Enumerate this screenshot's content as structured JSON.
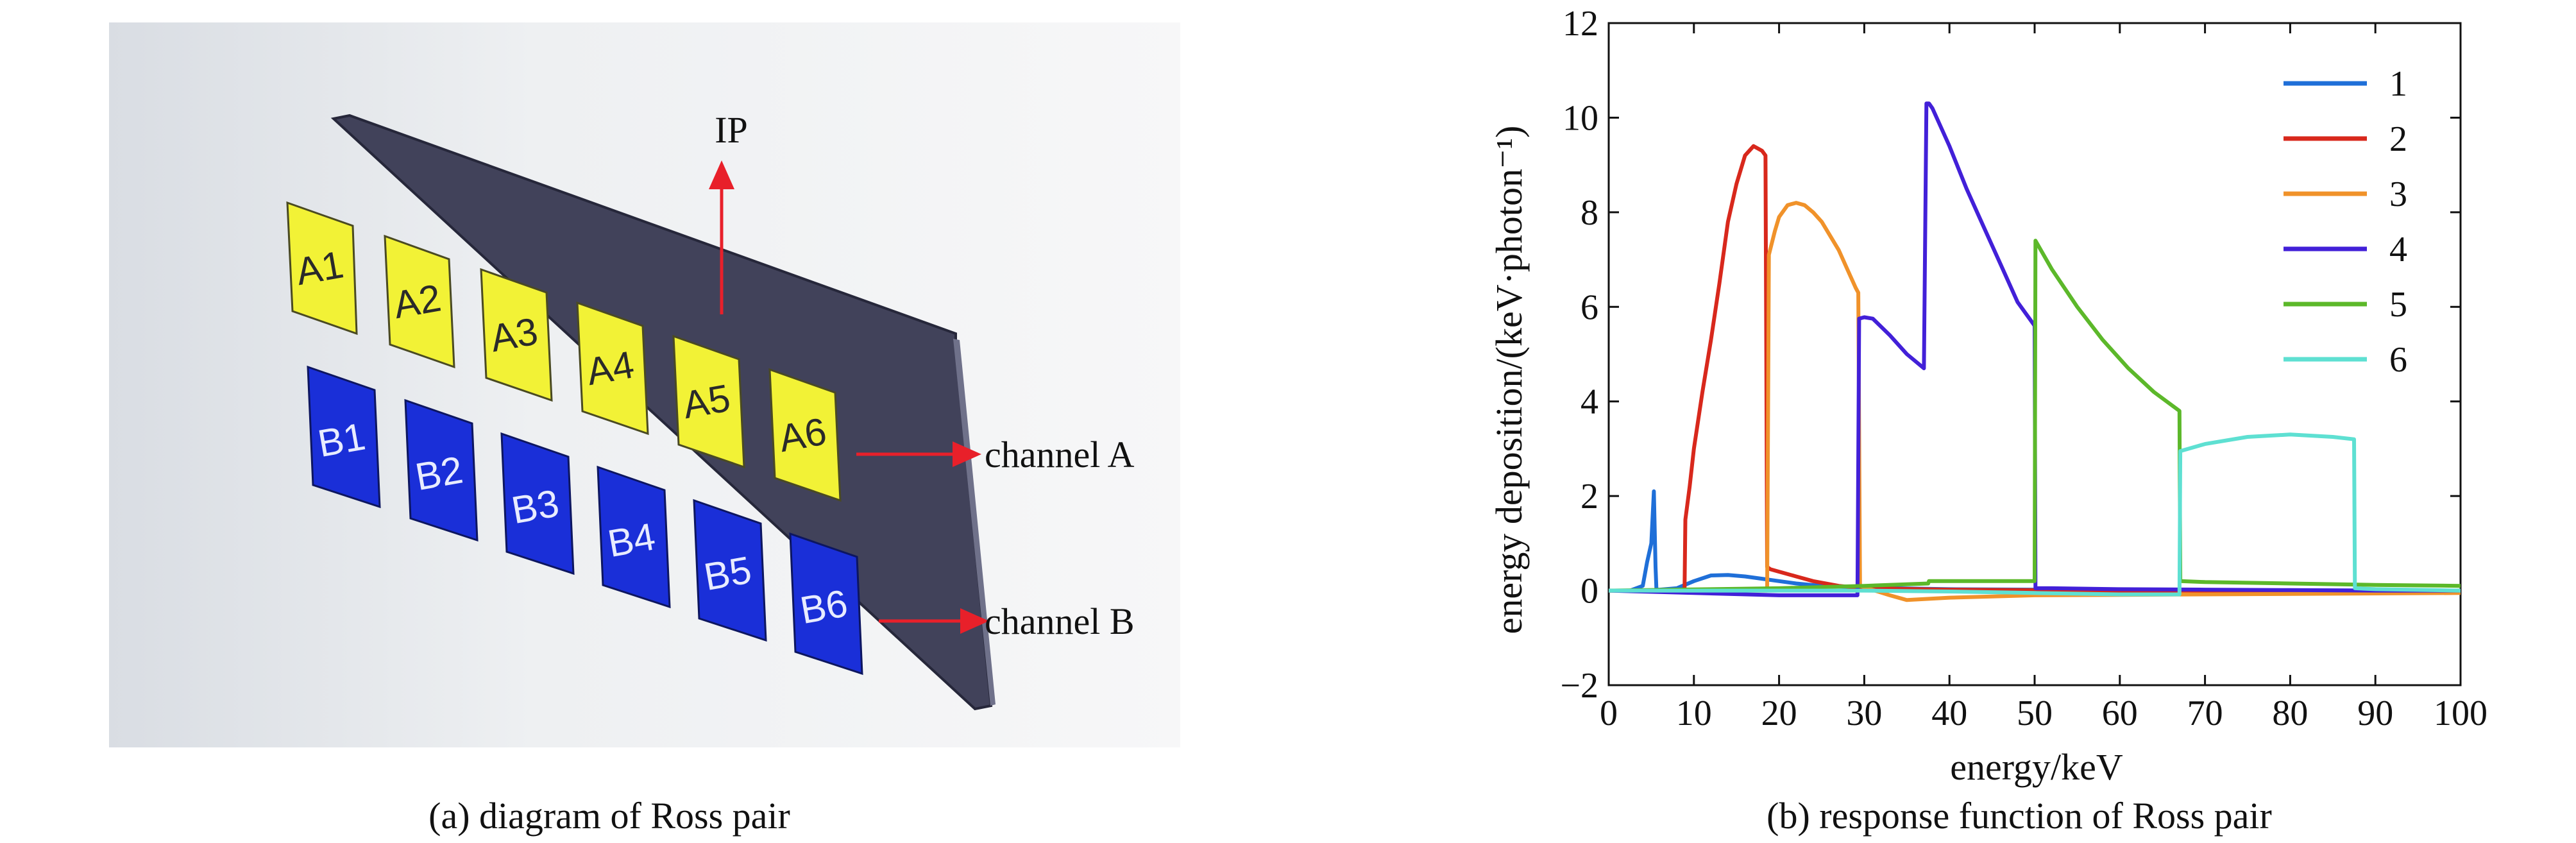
{
  "diagram": {
    "caption": "(a) diagram of Ross pair",
    "ip_label": "IP",
    "channel_a_label": "channel A",
    "channel_b_label": "channel B",
    "filters_a": [
      "A1",
      "A2",
      "A3",
      "A4",
      "A5",
      "A6"
    ],
    "filters_b": [
      "B1",
      "B2",
      "B3",
      "B4",
      "B5",
      "B6"
    ],
    "colors": {
      "channel_a": "#f2f236",
      "channel_b": "#1a2fd8",
      "plate": "#41425a",
      "arrow": "#e8202a"
    }
  },
  "chart": {
    "caption": "(b) response function of Ross pair",
    "xlabel": "energy/keV",
    "ylabel": "energy deposition/(keV·photon⁻¹)"
  },
  "chart_data": {
    "type": "line",
    "xlabel": "energy/keV",
    "ylabel": "energy deposition/(keV·photon⁻¹)",
    "xlim": [
      0,
      100
    ],
    "ylim": [
      -2,
      12
    ],
    "xticks": [
      0,
      10,
      20,
      30,
      40,
      50,
      60,
      70,
      80,
      90,
      100
    ],
    "yticks": [
      -2,
      0,
      2,
      4,
      6,
      8,
      10,
      12
    ],
    "grid": false,
    "legend_position": "top-right",
    "series": [
      {
        "name": "1",
        "color": "#1f6fd8",
        "x": [
          2.5,
          4,
          4.5,
          5,
          5.3,
          5.5,
          5.6,
          6,
          8,
          10,
          12,
          14,
          16,
          18,
          20,
          22,
          25,
          28,
          30,
          40,
          60,
          100
        ],
        "y": [
          0,
          0.1,
          0.6,
          1.0,
          2.1,
          0.5,
          0.02,
          0.02,
          0.05,
          0.2,
          0.32,
          0.33,
          0.3,
          0.25,
          0.2,
          0.15,
          0.1,
          0.08,
          0.06,
          0.03,
          0.01,
          0
        ]
      },
      {
        "name": "2",
        "color": "#d8281c",
        "x": [
          0,
          8.9,
          9.0,
          9.5,
          10,
          11,
          12,
          13,
          14,
          15,
          16,
          17,
          18,
          18.4,
          18.6,
          19,
          20,
          22,
          24,
          27,
          30,
          40,
          60,
          100
        ],
        "y": [
          0,
          0,
          1.5,
          2.2,
          3.0,
          4.2,
          5.3,
          6.5,
          7.8,
          8.6,
          9.2,
          9.4,
          9.3,
          9.2,
          0.5,
          0.45,
          0.4,
          0.3,
          0.2,
          0.1,
          0.05,
          0.02,
          0,
          0
        ]
      },
      {
        "name": "3",
        "color": "#f0922a",
        "x": [
          0,
          10,
          18.6,
          18.8,
          19.5,
          20,
          21,
          22,
          23,
          24,
          25,
          26,
          27,
          28,
          29,
          29.3,
          29.5,
          33,
          35,
          40,
          50,
          100
        ],
        "y": [
          0,
          0,
          0,
          7.1,
          7.6,
          7.9,
          8.15,
          8.2,
          8.15,
          8.0,
          7.8,
          7.5,
          7.2,
          6.8,
          6.4,
          6.3,
          0.1,
          -0.1,
          -0.2,
          -0.15,
          -0.1,
          -0.05
        ]
      },
      {
        "name": "4",
        "color": "#4220d8",
        "x": [
          0,
          10,
          20,
          25,
          29.2,
          29.4,
          30,
          31,
          33,
          35,
          37,
          37.3,
          37.6,
          38,
          40,
          42,
          44,
          46,
          48,
          50,
          50.1,
          52,
          60,
          70,
          80,
          90,
          100
        ],
        "y": [
          0,
          -0.05,
          -0.1,
          -0.1,
          -0.1,
          5.75,
          5.78,
          5.75,
          5.4,
          5.0,
          4.7,
          10.3,
          10.3,
          10.2,
          9.4,
          8.5,
          7.7,
          6.9,
          6.1,
          5.6,
          0.05,
          0.05,
          0.03,
          0.02,
          0.01,
          0,
          0
        ]
      },
      {
        "name": "5",
        "color": "#5cb82a",
        "x": [
          0,
          20,
          30,
          37.5,
          37.6,
          50,
          50.1,
          52,
          55,
          58,
          61,
          64,
          67,
          67.1,
          70,
          80,
          90,
          100
        ],
        "y": [
          0,
          0.05,
          0.1,
          0.15,
          0.2,
          0.2,
          7.4,
          6.8,
          6.0,
          5.3,
          4.7,
          4.2,
          3.8,
          0.2,
          0.18,
          0.15,
          0.12,
          0.1
        ]
      },
      {
        "name": "6",
        "color": "#5ee0d2",
        "x": [
          0,
          20,
          30,
          40,
          50,
          60,
          67,
          67.1,
          70,
          75,
          80,
          85,
          87.5,
          87.6,
          90,
          100
        ],
        "y": [
          0,
          0,
          0,
          -0.02,
          -0.05,
          -0.08,
          -0.08,
          2.95,
          3.1,
          3.25,
          3.3,
          3.25,
          3.2,
          0.05,
          0.03,
          0
        ]
      }
    ]
  }
}
